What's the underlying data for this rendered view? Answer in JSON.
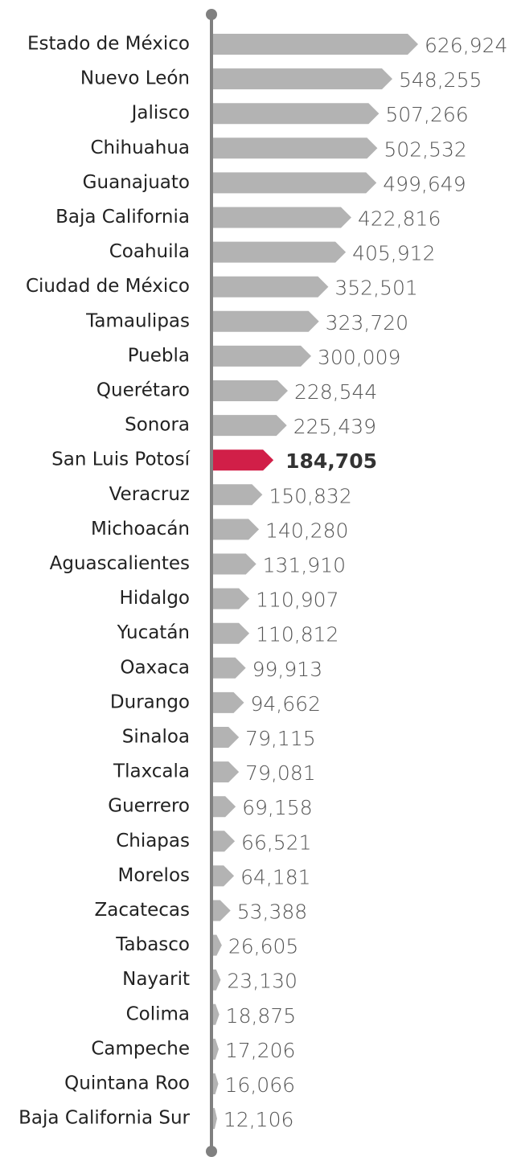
{
  "chart_data": {
    "type": "bar",
    "orientation": "horizontal",
    "categories": [
      "Estado de México",
      "Nuevo León",
      "Jalisco",
      "Chihuahua",
      "Guanajuato",
      "Baja California",
      "Coahuila",
      "Ciudad de México",
      "Tamaulipas",
      "Puebla",
      "Querétaro",
      "Sonora",
      "San Luis Potosí",
      "Veracruz",
      "Michoacán",
      "Aguascalientes",
      "Hidalgo",
      "Yucatán",
      "Oaxaca",
      "Durango",
      "Sinaloa",
      "Tlaxcala",
      "Guerrero",
      "Chiapas",
      "Morelos",
      "Zacatecas",
      "Tabasco",
      "Nayarit",
      "Colima",
      "Campeche",
      "Quintana Roo",
      "Baja California Sur"
    ],
    "values": [
      626924,
      548255,
      507266,
      502532,
      499649,
      422816,
      405912,
      352501,
      323720,
      300009,
      228544,
      225439,
      184705,
      150832,
      140280,
      131910,
      110907,
      110812,
      99913,
      94662,
      79115,
      79081,
      69158,
      66521,
      64181,
      53388,
      26605,
      23130,
      18875,
      17206,
      16066,
      12106
    ],
    "value_labels": [
      "626,924",
      "548,255",
      "507,266",
      "502,532",
      "499,649",
      "422,816",
      "405,912",
      "352,501",
      "323,720",
      "300,009",
      "228,544",
      "225,439",
      "184,705",
      "150,832",
      "140,280",
      "131,910",
      "110,907",
      "110,812",
      "99,913",
      "94,662",
      "79,115",
      "79,081",
      "69,158",
      "66,521",
      "64,181",
      "53,388",
      "26,605",
      "23,130",
      "18,875",
      "17,206",
      "16,066",
      "12,106"
    ],
    "colors": [
      "#b3b3b3",
      "#b3b3b3",
      "#b3b3b3",
      "#b3b3b3",
      "#b3b3b3",
      "#b3b3b3",
      "#b3b3b3",
      "#b3b3b3",
      "#b3b3b3",
      "#b3b3b3",
      "#b3b3b3",
      "#b3b3b3",
      "#d11f48",
      "#b3b3b3",
      "#b3b3b3",
      "#b3b3b3",
      "#b3b3b3",
      "#b3b3b3",
      "#b3b3b3",
      "#b3b3b3",
      "#b3b3b3",
      "#b3b3b3",
      "#b3b3b3",
      "#b3b3b3",
      "#b3b3b3",
      "#b3b3b3",
      "#b3b3b3",
      "#b3b3b3",
      "#b3b3b3",
      "#b3b3b3",
      "#b3b3b3",
      "#b3b3b3"
    ]
  }
}
